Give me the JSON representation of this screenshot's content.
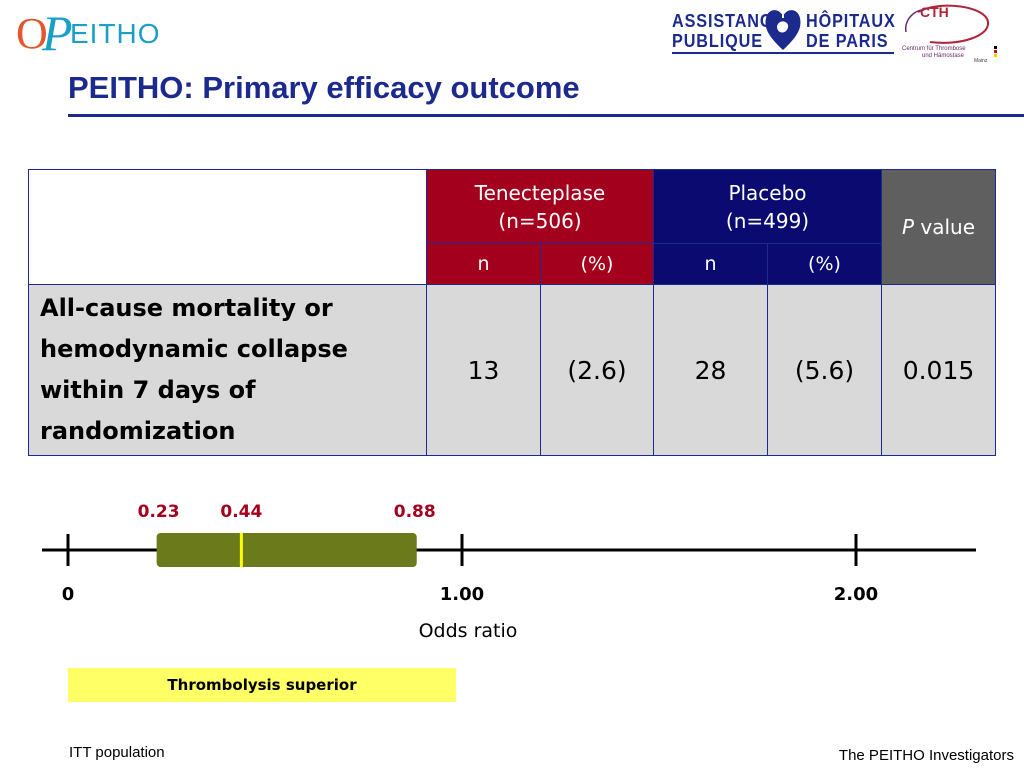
{
  "header": {
    "peitho_logo": {
      "o": "O",
      "p": "P",
      "rest": "EITHO"
    },
    "aphp_logo": {
      "line1_left": "ASSISTANCE",
      "line2_left": "PUBLIQUE",
      "line1_right": "HÔPITAUX",
      "line2_right": "DE PARIS"
    },
    "cth_logo": {
      "name": "CTH",
      "sub1": "Centrum für Thrombose",
      "sub2": "und Hämostase",
      "mainz": "Mainz"
    },
    "title": "PEITHO: Primary efficacy outcome"
  },
  "table": {
    "groups": [
      {
        "name": "Tenecteplase",
        "n_label": "(n=506)",
        "col_n": "n",
        "col_pct": "(%)"
      },
      {
        "name": "Placebo",
        "n_label": "(n=499)",
        "col_n": "n",
        "col_pct": "(%)"
      }
    ],
    "p_header_italic": "P",
    "p_header_rest": " value",
    "row": {
      "label": "All-cause mortality or hemodynamic collapse within 7 days of randomization",
      "tnk_n": "13",
      "tnk_pct": "(2.6)",
      "placebo_n": "28",
      "placebo_pct": "(5.6)",
      "p_value": "0.015"
    },
    "colors": {
      "tenecteplase": "#a3001e",
      "placebo": "#0a0a70",
      "p_value": "#5f5f5f",
      "body": "#d9d9d9",
      "border": "#1b2a8c"
    }
  },
  "odds_ratio": {
    "axis_title": "Odds ratio",
    "ticks": [
      {
        "value": 0,
        "label": "0"
      },
      {
        "value": 1,
        "label": "1.00"
      },
      {
        "value": 2,
        "label": "2.00"
      }
    ],
    "estimate": 0.44,
    "ci_lower": 0.23,
    "ci_upper": 0.88,
    "estimate_label": "0.44",
    "ci_lower_label": "0.23",
    "ci_upper_label": "0.88",
    "bar_color": "#6b7a1a",
    "estimate_color": "#ffff00",
    "label_color": "#a3001e"
  },
  "favour_box": {
    "label": "Thrombolysis superior",
    "color": "#ffff66"
  },
  "footer": {
    "left": "ITT population",
    "right": "The PEITHO Investigators"
  }
}
